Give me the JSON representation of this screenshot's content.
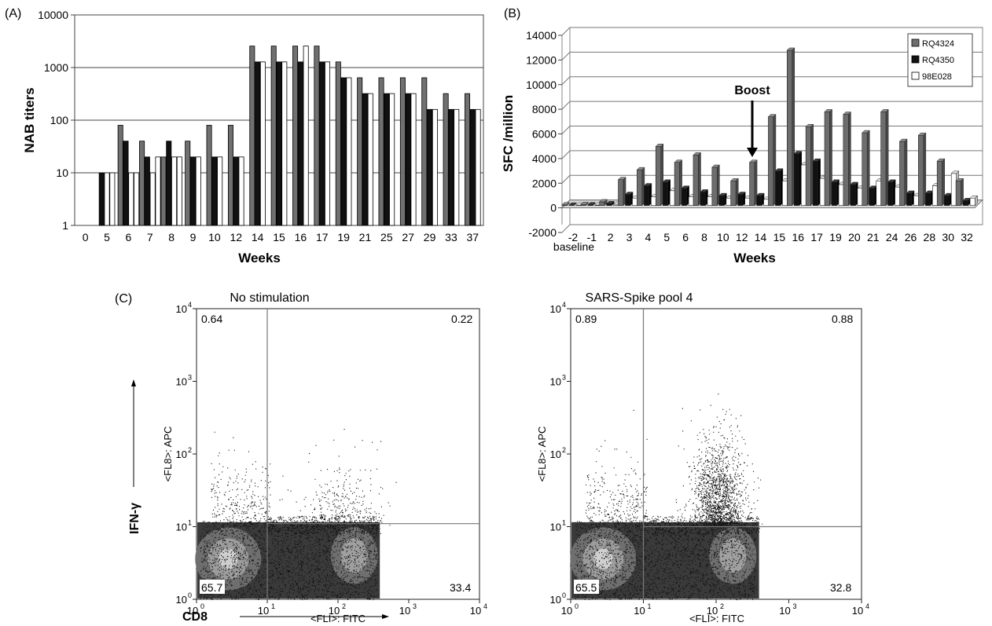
{
  "panel_labels": {
    "a": "(A)",
    "b": "(B)",
    "c": "(C)"
  },
  "chart_data": [
    {
      "type": "bar",
      "panel": "(A)",
      "ylabel": "NAB titers",
      "xlabel": "Weeks",
      "yscale": "log",
      "ylim": [
        1,
        10000
      ],
      "yticks": [
        "1",
        "10",
        "100",
        "1000",
        "10000"
      ],
      "grid": true,
      "categories": [
        "0",
        "5",
        "6",
        "7",
        "8",
        "9",
        "10",
        "12",
        "14",
        "15",
        "16",
        "17",
        "19",
        "21",
        "25",
        "27",
        "29",
        "33",
        "37"
      ],
      "series": [
        {
          "values": [
            null,
            null,
            80,
            40,
            20,
            40,
            80,
            80,
            2560,
            2560,
            2560,
            2560,
            1280,
            640,
            640,
            640,
            640,
            320,
            320
          ],
          "color": "#707070"
        },
        {
          "values": [
            null,
            10,
            40,
            20,
            40,
            20,
            20,
            20,
            1280,
            1280,
            1280,
            1280,
            640,
            320,
            320,
            320,
            160,
            160,
            160
          ],
          "color": "#111111"
        },
        {
          "values": [
            null,
            10,
            10,
            10,
            20,
            20,
            20,
            20,
            1280,
            1280,
            2560,
            1280,
            640,
            320,
            320,
            320,
            160,
            160,
            160
          ],
          "color": "#ffffff"
        }
      ],
      "extra_bars": [
        {
          "values": [
            null,
            10,
            10,
            20,
            20,
            null,
            null,
            null,
            null,
            null,
            null,
            null,
            null,
            null,
            null,
            null,
            null,
            null,
            null
          ],
          "color": "#ffffff"
        }
      ]
    },
    {
      "type": "bar",
      "panel": "(B)",
      "ylabel": "SFC /million",
      "xlabel": "Weeks",
      "ylim": [
        -2000,
        14000
      ],
      "yticks": [
        -2000,
        0,
        2000,
        4000,
        6000,
        8000,
        10000,
        12000,
        14000
      ],
      "grid": true,
      "categories": [
        "-2",
        "-1",
        "2",
        "3",
        "4",
        "5",
        "6",
        "8",
        "10",
        "12",
        "14",
        "15",
        "16",
        "17",
        "19",
        "20",
        "21",
        "24",
        "26",
        "28",
        "30",
        "32"
      ],
      "category_note": "baseline",
      "legend_position": "top-right",
      "series": [
        {
          "name": "RQ4324",
          "color": "#6d6d6d",
          "values": [
            50,
            80,
            300,
            2100,
            2900,
            4800,
            3500,
            4100,
            3100,
            2000,
            3500,
            7200,
            12600,
            6400,
            7600,
            7400,
            5900,
            7600,
            5200,
            5700,
            3600,
            2000
          ]
        },
        {
          "name": "RQ4350",
          "color": "#111111",
          "values": [
            20,
            60,
            150,
            900,
            1600,
            1900,
            1400,
            1100,
            800,
            900,
            800,
            2800,
            4200,
            3600,
            1900,
            1700,
            1400,
            1900,
            1000,
            1000,
            800,
            400
          ]
        },
        {
          "name": "98E028",
          "color": "#ffffff",
          "values": [
            0,
            40,
            100,
            600,
            700,
            1200,
            700,
            700,
            600,
            600,
            500,
            2000,
            3300,
            2200,
            1700,
            1400,
            2000,
            1500,
            800,
            1600,
            2600,
            600
          ]
        }
      ],
      "annotation": {
        "text": "Boost",
        "at_category": "14"
      }
    },
    {
      "type": "scatter",
      "panel": "(C)",
      "title": "No stimulation",
      "xlabel": "<FLI>: FITC",
      "ylabel": "<FL8>: APC",
      "xscale": "log",
      "yscale": "log",
      "xlim": [
        1,
        10000
      ],
      "ylim": [
        1,
        10000
      ],
      "gate": {
        "x": 10,
        "y": 11
      },
      "quadrants": {
        "upper_left": "0.64",
        "upper_right": "0.22",
        "lower_left": "65.7",
        "lower_right": "33.4"
      },
      "seed": 11,
      "responders": 300
    },
    {
      "type": "scatter",
      "panel": "(C)",
      "title": "SARS-Spike pool 4",
      "xlabel": "<FLI>: FITC",
      "ylabel": "<FL8>: APC",
      "xscale": "log",
      "yscale": "log",
      "xlim": [
        1,
        10000
      ],
      "ylim": [
        1,
        10000
      ],
      "gate": {
        "x": 10,
        "y": 10
      },
      "quadrants": {
        "upper_left": "0.89",
        "upper_right": "0.88",
        "lower_left": "65.5",
        "lower_right": "32.8"
      },
      "seed": 29,
      "responders": 1600
    }
  ],
  "flow_axes": {
    "ticks": [
      "10",
      "10",
      "10",
      "10",
      "10"
    ],
    "exponents": [
      "0",
      "1",
      "2",
      "3",
      "4"
    ],
    "ylabel_outer": "IFN-γ",
    "xlabel_outer": "CD8"
  }
}
